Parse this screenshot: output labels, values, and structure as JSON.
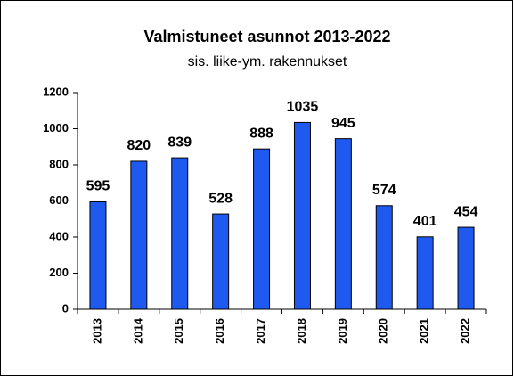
{
  "chart_data": {
    "type": "bar",
    "title": "Valmistuneet asunnot 2013-2022",
    "subtitle": "sis. liike-ym. rakennukset",
    "categories": [
      "2013",
      "2014",
      "2015",
      "2016",
      "2017",
      "2018",
      "2019",
      "2020",
      "2021",
      "2022"
    ],
    "values": [
      595,
      820,
      839,
      528,
      888,
      1035,
      945,
      574,
      401,
      454
    ],
    "color": "#1f5af0",
    "ylim": [
      0,
      1200
    ],
    "yticks": [
      0,
      200,
      400,
      600,
      800,
      1000,
      1200
    ],
    "grid": false
  }
}
